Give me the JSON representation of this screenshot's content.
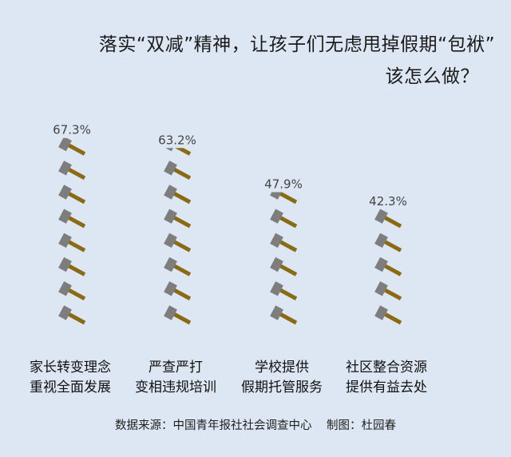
{
  "title": {
    "line1": "落实“双减”精神，让孩子们无虑甩掉假期“包袱”",
    "line2": "该怎么做？"
  },
  "chart_data": {
    "type": "bar",
    "style": "pictograph (stacked hammer icons)",
    "categories": [
      [
        "家长转变理念",
        "重视全面发展"
      ],
      [
        "严查严打",
        "变相违规培训"
      ],
      [
        "学校提供",
        "假期托管服务"
      ],
      [
        "社区整合资源",
        "提供有益去处"
      ]
    ],
    "values": [
      67.3,
      63.2,
      47.9,
      42.3
    ],
    "value_labels": [
      "67.3%",
      "63.2%",
      "47.9%",
      "42.3%"
    ],
    "unit": "%",
    "icon": "hammer-icon",
    "colors": {
      "hammer_head": "#7d7d7d",
      "hammer_handle": "#8a6a14"
    }
  },
  "footer": {
    "source": "数据来源：中国青年报社社会调查中心    制图：杜园春"
  }
}
